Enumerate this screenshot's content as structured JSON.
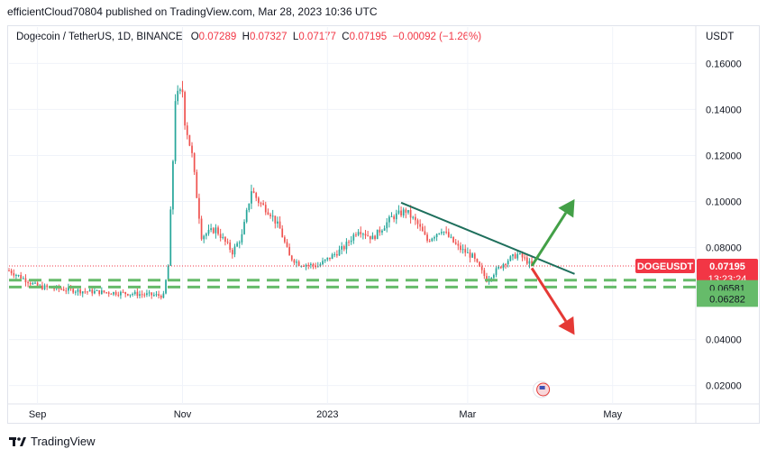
{
  "publisher_line": "efficientCloud70804 published on TradingView.com, Mar 28, 2023 10:36 UTC",
  "header": {
    "symbol": "Dogecoin / TetherUS, 1D, BINANCE",
    "open_label": "O",
    "open": "0.07289",
    "high_label": "H",
    "high": "0.07327",
    "low_label": "L",
    "low": "0.07177",
    "close_label": "C",
    "close": "0.07195",
    "change": "−0.00092 (−1.26%)"
  },
  "currency": "USDT",
  "footer": {
    "brand": "TradingView"
  },
  "price_tag": {
    "symbol": "DOGEUSDT",
    "price": "0.07195",
    "countdown": "13:23:24",
    "color": "#f23645"
  },
  "support_tags": [
    "0.06581",
    "0.06282"
  ],
  "colors": {
    "up": "#26a69a",
    "down": "#ef5350",
    "trendline": "#1e6f5c",
    "support": "#66bb6a",
    "arrow_up": "#43a047",
    "arrow_down": "#e53935"
  },
  "chart_data": {
    "type": "candlestick",
    "title": "",
    "ylabel": "",
    "ylim": [
      0.012,
      0.168
    ],
    "y_ticks": [
      "0.16000",
      "0.14000",
      "0.12000",
      "0.10000",
      "0.08000",
      "0.04000",
      "0.02000"
    ],
    "x_ticks": [
      "Sep",
      "Nov",
      "2023",
      "Mar",
      "May"
    ],
    "x_tick_dates": [
      "2022-09-01",
      "2022-11-01",
      "2023-01-01",
      "2023-03-01",
      "2023-05-01"
    ],
    "x_range": [
      "2022-08-20",
      "2023-06-05"
    ],
    "last_price": 0.07195,
    "support_levels": [
      0.06581,
      0.06282
    ],
    "trendline": {
      "from": [
        "2023-02-01",
        0.0995
      ],
      "to": [
        "2023-04-15",
        0.0685
      ]
    },
    "arrows": [
      {
        "direction": "up",
        "from": [
          "2023-03-28",
          0.072
        ],
        "to": [
          "2023-04-15",
          0.101
        ]
      },
      {
        "direction": "down",
        "from": [
          "2023-03-28",
          0.071
        ],
        "to": [
          "2023-04-15",
          0.042
        ]
      }
    ],
    "anchors": [
      [
        "2022-08-20",
        0.07
      ],
      [
        "2022-09-01",
        0.063
      ],
      [
        "2022-09-20",
        0.061
      ],
      [
        "2022-10-10",
        0.06
      ],
      [
        "2022-10-24",
        0.059
      ],
      [
        "2022-10-26",
        0.072
      ],
      [
        "2022-10-28",
        0.118
      ],
      [
        "2022-10-29",
        0.145
      ],
      [
        "2022-11-01",
        0.148
      ],
      [
        "2022-11-02",
        0.135
      ],
      [
        "2022-11-05",
        0.12
      ],
      [
        "2022-11-09",
        0.085
      ],
      [
        "2022-11-15",
        0.088
      ],
      [
        "2022-11-22",
        0.078
      ],
      [
        "2022-11-26",
        0.085
      ],
      [
        "2022-11-30",
        0.105
      ],
      [
        "2022-12-03",
        0.1
      ],
      [
        "2022-12-08",
        0.095
      ],
      [
        "2022-12-12",
        0.088
      ],
      [
        "2022-12-16",
        0.076
      ],
      [
        "2022-12-20",
        0.073
      ],
      [
        "2022-12-28",
        0.072
      ],
      [
        "2023-01-08",
        0.08
      ],
      [
        "2023-01-14",
        0.088
      ],
      [
        "2023-01-20",
        0.084
      ],
      [
        "2023-01-28",
        0.093
      ],
      [
        "2023-02-03",
        0.096
      ],
      [
        "2023-02-08",
        0.09
      ],
      [
        "2023-02-12",
        0.083
      ],
      [
        "2023-02-18",
        0.088
      ],
      [
        "2023-02-25",
        0.08
      ],
      [
        "2023-03-03",
        0.076
      ],
      [
        "2023-03-09",
        0.066
      ],
      [
        "2023-03-13",
        0.07
      ],
      [
        "2023-03-17",
        0.074
      ],
      [
        "2023-03-22",
        0.077
      ],
      [
        "2023-03-25",
        0.075
      ],
      [
        "2023-03-28",
        0.072
      ]
    ]
  }
}
